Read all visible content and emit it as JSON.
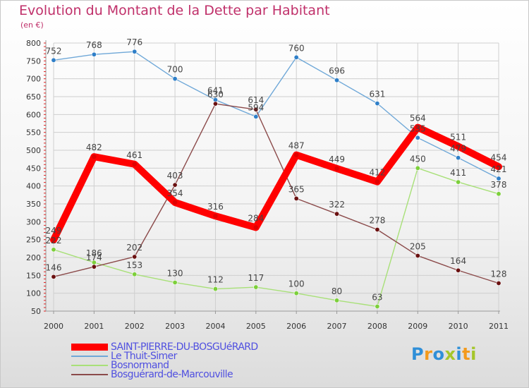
{
  "title": "Evolution du Montant de la Dette par Habitant",
  "subtitle": "(en €)",
  "brand": {
    "letters": [
      {
        "char": "P",
        "color": "#2f8fd8"
      },
      {
        "char": "r",
        "color": "#f39a1c"
      },
      {
        "char": "o",
        "color": "#2f8fd8"
      },
      {
        "char": "x",
        "color": "#a5c62a"
      },
      {
        "char": "i",
        "color": "#2f8fd8"
      },
      {
        "char": "t",
        "color": "#f39a1c"
      },
      {
        "char": "i",
        "color": "#a5c62a"
      }
    ]
  },
  "chart_data": {
    "type": "line",
    "x": [
      "2000",
      "2001",
      "2002",
      "2003",
      "2004",
      "2005",
      "2006",
      "2007",
      "2008",
      "2009",
      "2010",
      "2011"
    ],
    "ylim": [
      50,
      800
    ],
    "yticks": [
      50,
      100,
      150,
      200,
      250,
      300,
      350,
      400,
      450,
      500,
      550,
      600,
      650,
      700,
      750,
      800
    ],
    "grid": true,
    "legend_position": "bottom",
    "series": [
      {
        "name": "SAINT-PIERRE-DU-BOSGUéRARD",
        "color": "#ff0000",
        "marker_color": "#e00000",
        "emphasis": true,
        "values": [
          249,
          482,
          461,
          354,
          316,
          284,
          487,
          449,
          412,
          564,
          511,
          454
        ],
        "labels": [
          "249",
          "482",
          "461",
          "354",
          "316",
          "284",
          "487",
          "449",
          "412",
          "564",
          "511",
          "454"
        ]
      },
      {
        "name": "Le Thuit-Simer",
        "color": "#6fa8d8",
        "marker_color": "#2f7fc8",
        "emphasis": false,
        "values": [
          752,
          768,
          776,
          700,
          641,
          594,
          760,
          696,
          631,
          535,
          479,
          421
        ],
        "labels": [
          "752",
          "768",
          "776",
          "700",
          "641",
          "594",
          "760",
          "696",
          "631",
          "535",
          "479",
          "421"
        ]
      },
      {
        "name": "Bosnormand",
        "color": "#a8e078",
        "marker_color": "#7ccf3a",
        "emphasis": false,
        "values": [
          222,
          186,
          153,
          130,
          112,
          117,
          100,
          80,
          63,
          450,
          411,
          378
        ],
        "labels": [
          "222",
          "186",
          "153",
          "130",
          "112",
          "117",
          "100",
          "80",
          "63",
          "450",
          "411",
          "378"
        ]
      },
      {
        "name": "Bosguérard-de-Marcouville",
        "color": "#8b4a4a",
        "marker_color": "#6a1010",
        "emphasis": false,
        "values": [
          146,
          174,
          202,
          403,
          630,
          614,
          365,
          322,
          278,
          205,
          164,
          128
        ],
        "labels": [
          "146",
          "174",
          "202",
          "403",
          "630",
          "614",
          "365",
          "322",
          "278",
          "205",
          "164",
          "128"
        ]
      }
    ]
  }
}
